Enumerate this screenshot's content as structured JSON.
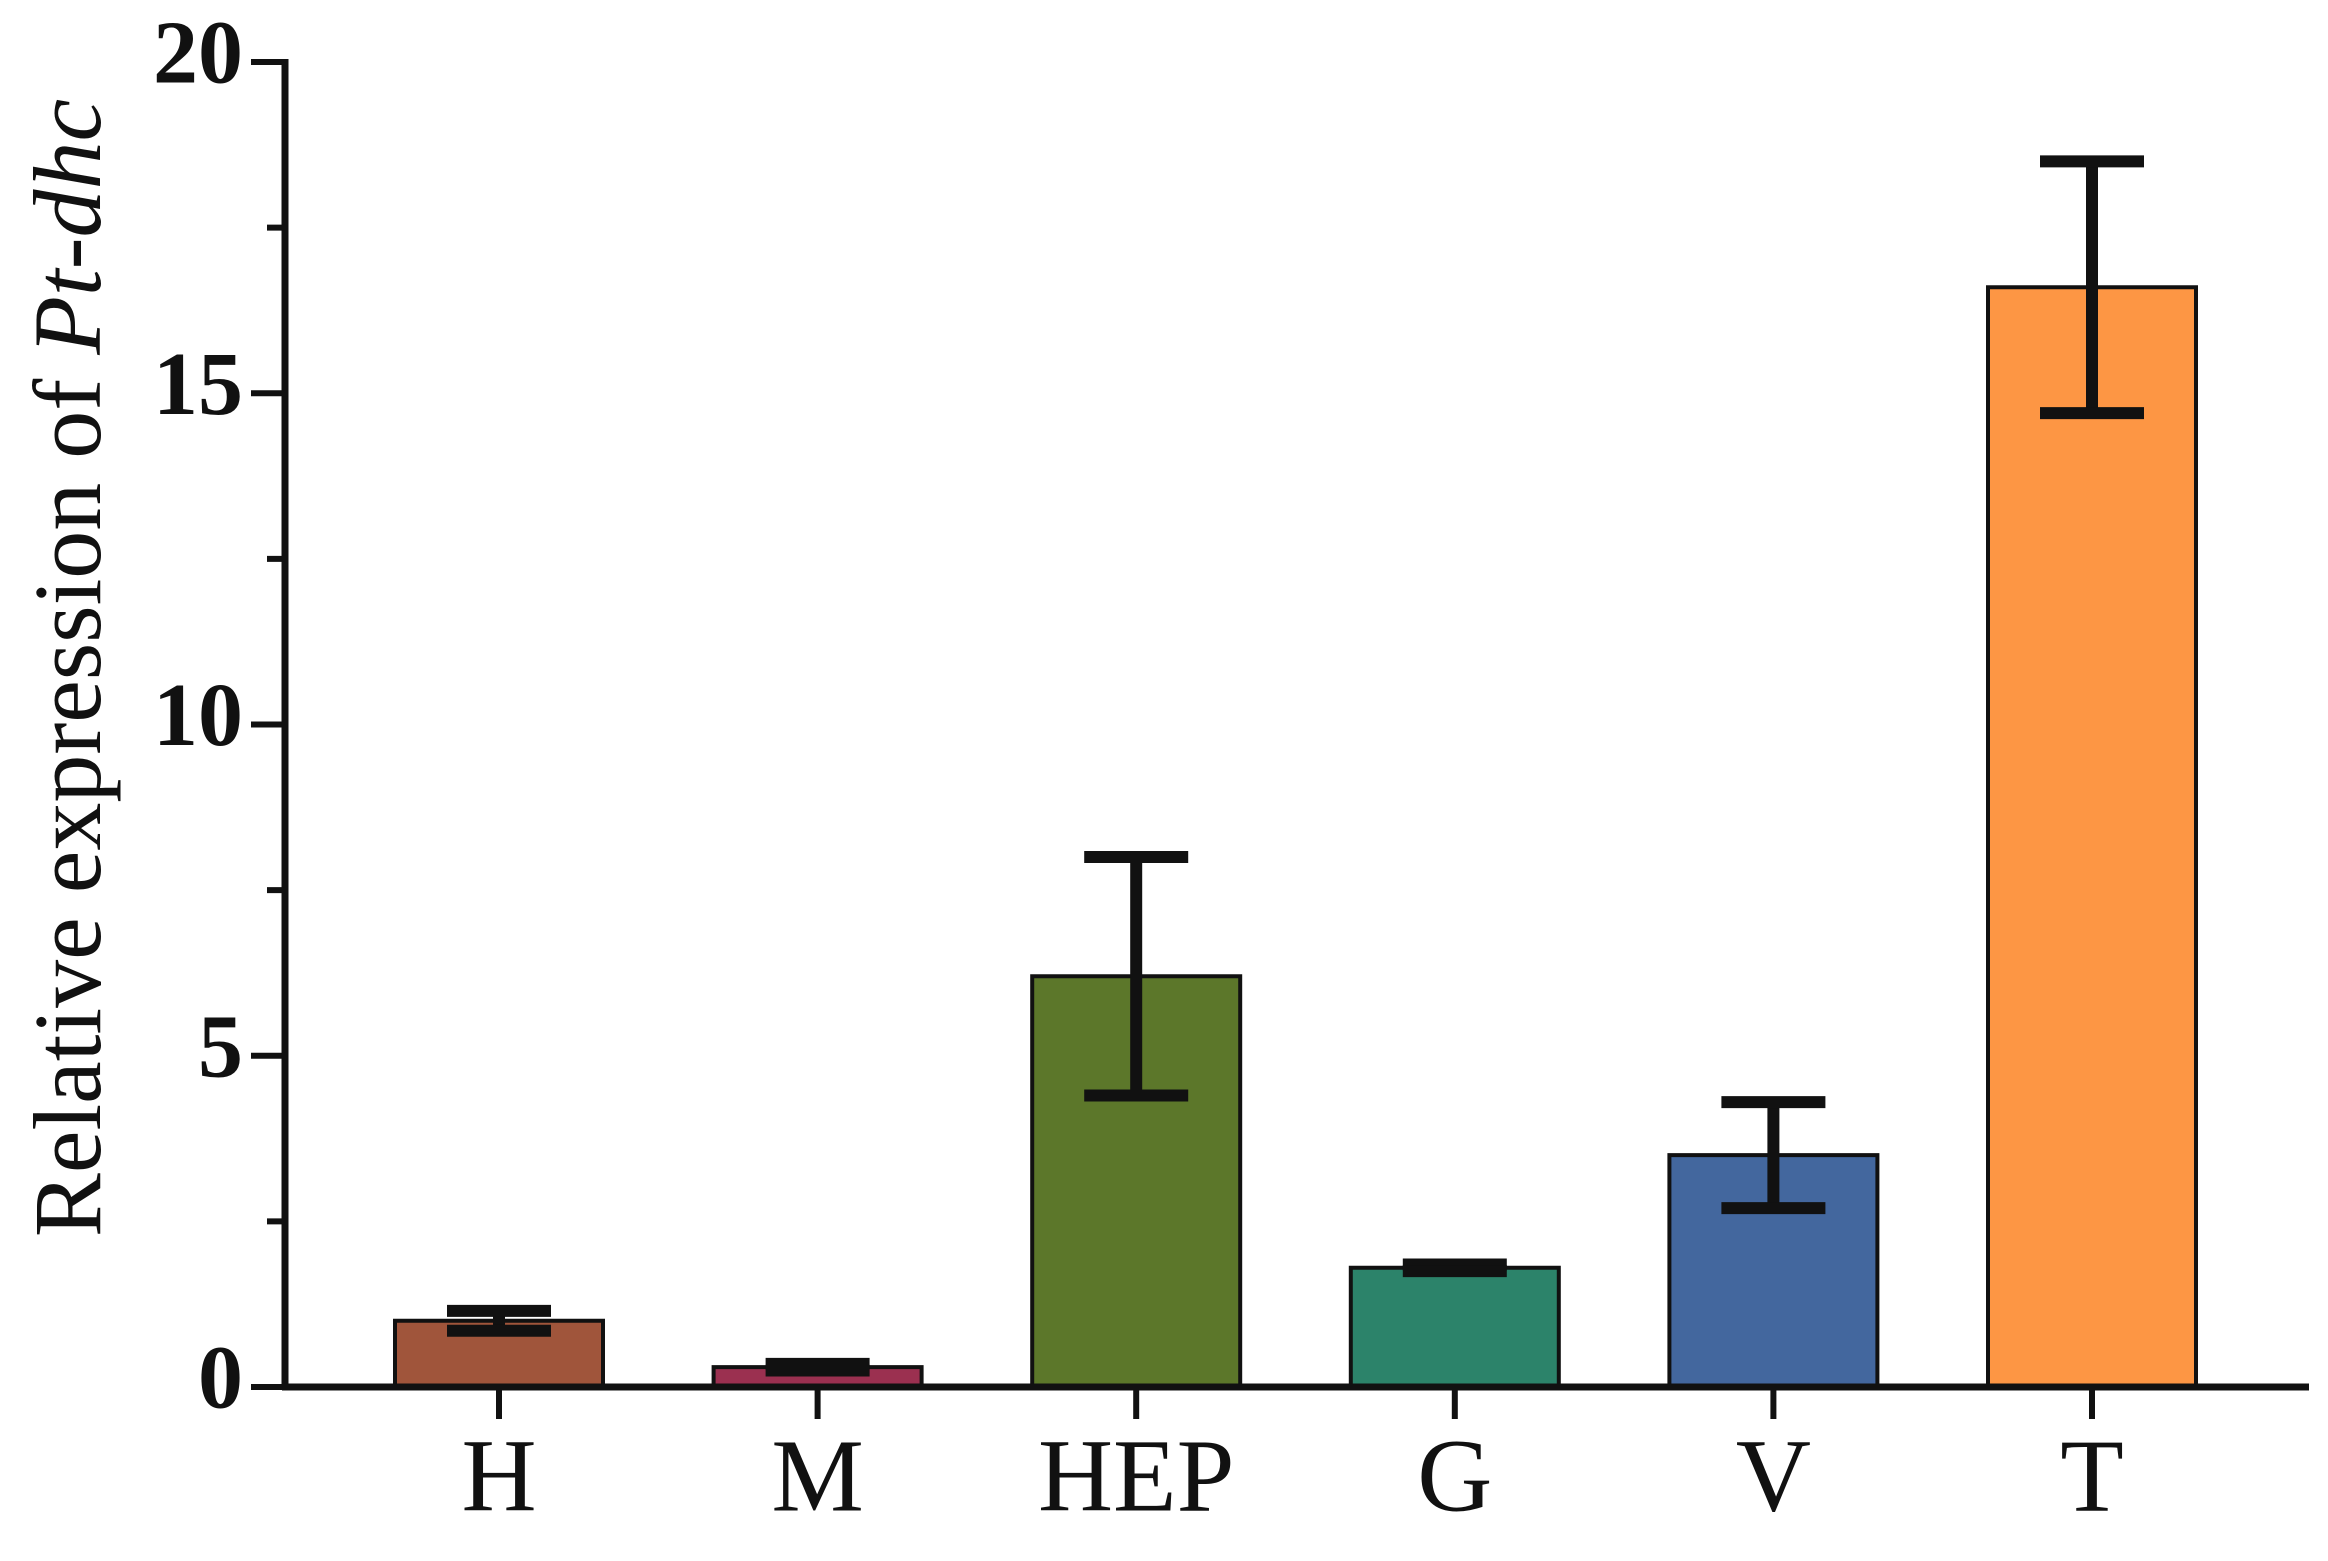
{
  "chart_data": {
    "type": "bar",
    "ylabel_parts": [
      "Relative expression of",
      "Pt-dhc"
    ],
    "categories": [
      "H",
      "M",
      "HEP",
      "G",
      "V",
      "T"
    ],
    "values": [
      1.0,
      0.3,
      6.2,
      1.8,
      3.5,
      16.6
    ],
    "errors": [
      0.15,
      0.05,
      1.8,
      0.05,
      0.8,
      1.9
    ],
    "colors": [
      "#a0553b",
      "#9b3050",
      "#5c772a",
      "#2c836a",
      "#43679e",
      "#fd9644"
    ],
    "ylim": [
      0,
      20
    ],
    "yticks": [
      0,
      5,
      10,
      15,
      20
    ],
    "minor_yticks": [
      2.5,
      7.5,
      12.5,
      17.5
    ]
  }
}
